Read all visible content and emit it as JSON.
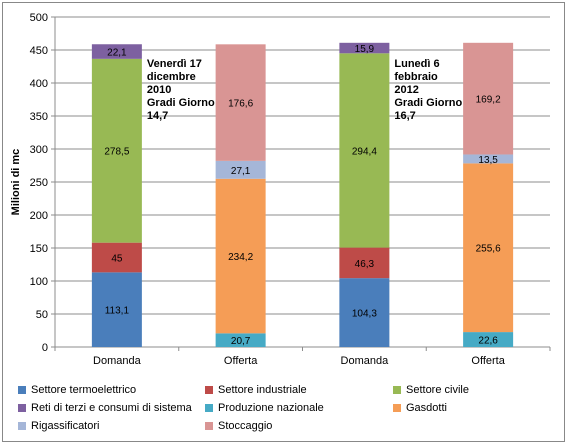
{
  "chart_data": {
    "type": "bar",
    "stacked": true,
    "ylabel": "Milioni di mc",
    "ylim": [
      0,
      500
    ],
    "yticks": [
      0,
      50,
      100,
      150,
      200,
      250,
      300,
      350,
      400,
      450,
      500
    ],
    "grid": true,
    "categories": [
      "Domanda",
      "Offerta",
      "Domanda",
      "Offerta"
    ],
    "series": [
      {
        "name": "Settore termoelettrico",
        "color": "#4a7ebb",
        "values": [
          113.1,
          null,
          104.3,
          null
        ],
        "labels": [
          "113,1",
          "",
          "104,3",
          ""
        ]
      },
      {
        "name": "Settore industriale",
        "color": "#be4b48",
        "values": [
          45,
          null,
          46.3,
          null
        ],
        "labels": [
          "45",
          "",
          "46,3",
          ""
        ]
      },
      {
        "name": "Settore civile",
        "color": "#98b954",
        "values": [
          278.5,
          null,
          294.4,
          null
        ],
        "labels": [
          "278,5",
          "",
          "294,4",
          ""
        ]
      },
      {
        "name": "Reti di terzi e consumi di sistema",
        "color": "#7d60a0",
        "values": [
          22.1,
          null,
          15.9,
          null
        ],
        "labels": [
          "22,1",
          "",
          "15,9",
          ""
        ]
      },
      {
        "name": "Produzione nazionale",
        "color": "#46aac5",
        "values": [
          null,
          20.7,
          null,
          22.6
        ],
        "labels": [
          "",
          "20,7",
          "",
          "22,6"
        ]
      },
      {
        "name": "Gasdotti",
        "color": "#f59d56",
        "values": [
          null,
          234.2,
          null,
          255.6
        ],
        "labels": [
          "",
          "234,2",
          "",
          "255,6"
        ]
      },
      {
        "name": "Rigassificatori",
        "color": "#a5b6d8",
        "values": [
          null,
          27.1,
          null,
          13.5
        ],
        "labels": [
          "",
          "27,1",
          "",
          "13,5"
        ]
      },
      {
        "name": "Stoccaggio",
        "color": "#d99594",
        "values": [
          null,
          176.6,
          null,
          169.2
        ],
        "labels": [
          "",
          "176,6",
          "",
          "169,2"
        ]
      }
    ],
    "annotations": [
      {
        "lines": [
          "Venerdì 17",
          "dicembre",
          "2010",
          "Gradi Giorno",
          "14,7"
        ]
      },
      {
        "lines": [
          "Lunedì 6",
          "febbraio",
          "2012",
          "Gradi Giorno",
          "16,7"
        ]
      }
    ],
    "legend_position": "bottom"
  }
}
